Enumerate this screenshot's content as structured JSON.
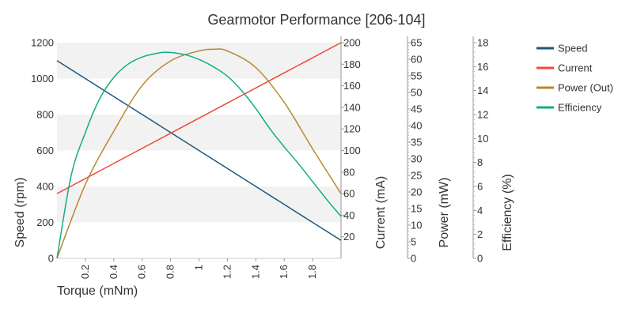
{
  "chart_data": {
    "type": "line",
    "title": "Gearmotor Performance [206-104]",
    "xlabel": "Torque (mNm)",
    "xlim": [
      0,
      2.0
    ],
    "x_ticks": [
      0.2,
      0.4,
      0.6,
      0.8,
      1.0,
      1.2,
      1.4,
      1.6,
      1.8
    ],
    "x_tick_labels": [
      "0.2",
      "0.4",
      "0.6",
      "0.8",
      "1",
      "1.2",
      "1.4",
      "1.6",
      "1.8"
    ],
    "axes": [
      {
        "id": "speed",
        "label": "Speed (rpm)",
        "min": 0,
        "max": 1200,
        "ticks": [
          0,
          200,
          400,
          600,
          800,
          1000,
          1200
        ]
      },
      {
        "id": "current",
        "label": "Current (mA)",
        "min": 0,
        "max": 200,
        "ticks": [
          20,
          40,
          60,
          80,
          100,
          120,
          140,
          160,
          180,
          200
        ]
      },
      {
        "id": "power",
        "label": "Power (mW)",
        "min": 0,
        "max": 65,
        "ticks": [
          0,
          5,
          10,
          15,
          20,
          25,
          30,
          35,
          40,
          45,
          50,
          55,
          60,
          65
        ]
      },
      {
        "id": "efficiency",
        "label": "Efficiency (%)",
        "min": 0,
        "max": 18,
        "ticks": [
          0,
          2,
          4,
          6,
          8,
          10,
          12,
          14,
          16,
          18
        ]
      }
    ],
    "series": [
      {
        "name": "Speed",
        "axis": "speed",
        "color": "#1a5a78",
        "x": [
          0,
          0.4,
          0.8,
          1.2,
          1.6,
          2.0
        ],
        "y": [
          1100,
          900,
          700,
          500,
          300,
          100
        ]
      },
      {
        "name": "Current",
        "axis": "current",
        "color": "#f04a35",
        "x": [
          0,
          0.4,
          0.8,
          1.2,
          1.6,
          2.0
        ],
        "y": [
          60,
          88,
          116,
          144,
          172,
          200
        ]
      },
      {
        "name": "Power (Out)",
        "axis": "power",
        "color": "#b5892f",
        "x": [
          0,
          0.2,
          0.4,
          0.6,
          0.8,
          1.0,
          1.1,
          1.2,
          1.4,
          1.6,
          1.8,
          2.0
        ],
        "y": [
          0,
          22.3,
          38.3,
          52.1,
          59.5,
          62.5,
          63.0,
          62.5,
          57.5,
          47.0,
          33.0,
          19.5
        ]
      },
      {
        "name": "Efficiency",
        "axis": "efficiency",
        "color": "#12ad84",
        "x": [
          0,
          0.1,
          0.2,
          0.3,
          0.4,
          0.5,
          0.6,
          0.7,
          0.77,
          0.9,
          1.0,
          1.1,
          1.2,
          1.3,
          1.4,
          1.5,
          1.6,
          1.7,
          1.8,
          1.9,
          2.0
        ],
        "y": [
          0,
          6.9,
          10.5,
          13.3,
          15.1,
          16.2,
          16.8,
          17.1,
          17.2,
          17.0,
          16.6,
          16.0,
          15.2,
          14.0,
          12.5,
          10.8,
          9.3,
          7.9,
          6.4,
          4.9,
          3.5
        ]
      }
    ],
    "legend_position": "top-right",
    "grid": "alternating horizontal bands"
  }
}
